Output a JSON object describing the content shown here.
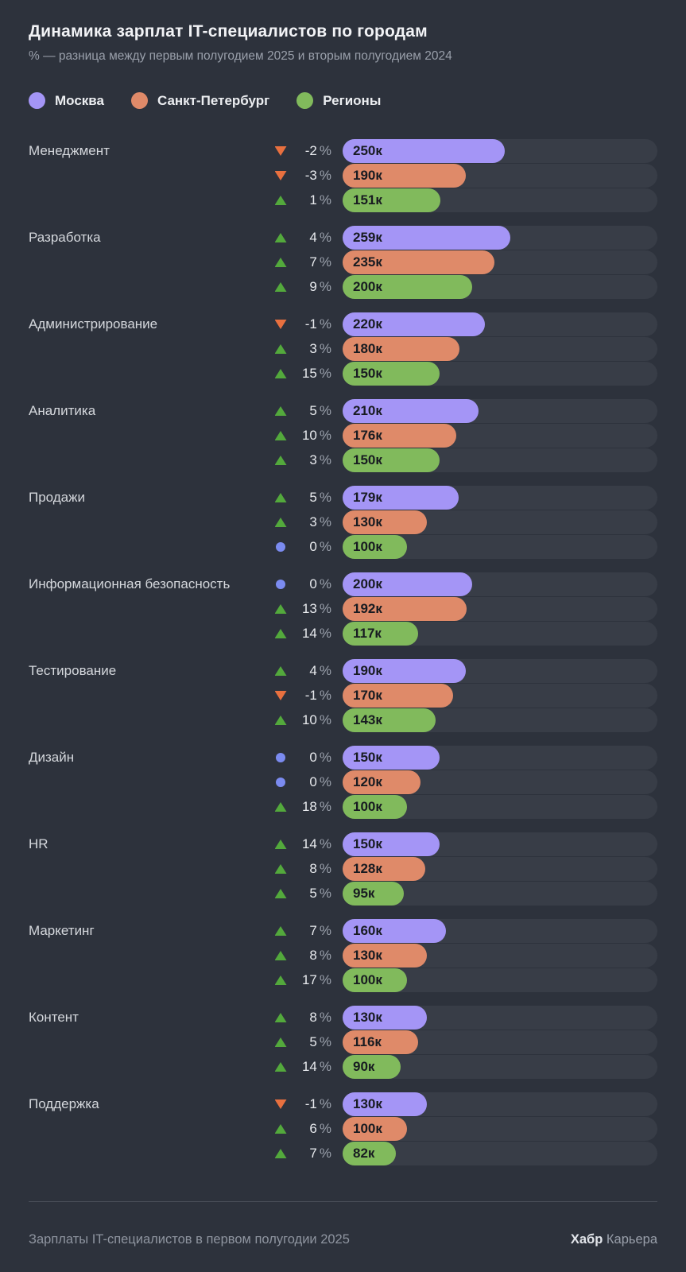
{
  "header": {
    "title": "Динамика зарплат IT-специалистов по городам",
    "subtitle": "% — разница между первым полугодием 2025 и вторым полугодием 2024"
  },
  "legend": {
    "items": [
      {
        "key": "moscow",
        "label": "Москва",
        "color": "#a495f6"
      },
      {
        "key": "spb",
        "label": "Санкт-Петербург",
        "color": "#df8a69"
      },
      {
        "key": "regions",
        "label": "Регионы",
        "color": "#81ba5c"
      }
    ]
  },
  "chart_data": {
    "type": "bar",
    "orientation": "horizontal",
    "title": "Динамика зарплат IT-специалистов по городам",
    "xlim": [
      0,
      486
    ],
    "grid": false,
    "legend_position": "top",
    "percent_sign": "%",
    "series_names": [
      "Москва",
      "Санкт-Петербург",
      "Регионы"
    ],
    "marker_colors": {
      "up": "#53a93c",
      "down": "#e8703f",
      "zero": "#7b8bf0"
    },
    "groups": [
      {
        "label": "Менеджмент",
        "rows": [
          {
            "city": "Москва",
            "city_key": "moscow",
            "direction": "down",
            "change_pct": -2,
            "change_label": "-2",
            "salary_k": 250,
            "salary_label": "250к"
          },
          {
            "city": "Санкт-Петербург",
            "city_key": "spb",
            "direction": "down",
            "change_pct": -3,
            "change_label": "-3",
            "salary_k": 190,
            "salary_label": "190к"
          },
          {
            "city": "Регионы",
            "city_key": "regions",
            "direction": "up",
            "change_pct": 1,
            "change_label": "1",
            "salary_k": 151,
            "salary_label": "151к"
          }
        ]
      },
      {
        "label": "Разработка",
        "rows": [
          {
            "city": "Москва",
            "city_key": "moscow",
            "direction": "up",
            "change_pct": 4,
            "change_label": "4",
            "salary_k": 259,
            "salary_label": "259к"
          },
          {
            "city": "Санкт-Петербург",
            "city_key": "spb",
            "direction": "up",
            "change_pct": 7,
            "change_label": "7",
            "salary_k": 235,
            "salary_label": "235к"
          },
          {
            "city": "Регионы",
            "city_key": "regions",
            "direction": "up",
            "change_pct": 9,
            "change_label": "9",
            "salary_k": 200,
            "salary_label": "200к"
          }
        ]
      },
      {
        "label": "Администрирование",
        "rows": [
          {
            "city": "Москва",
            "city_key": "moscow",
            "direction": "down",
            "change_pct": -1,
            "change_label": "-1",
            "salary_k": 220,
            "salary_label": "220к"
          },
          {
            "city": "Санкт-Петербург",
            "city_key": "spb",
            "direction": "up",
            "change_pct": 3,
            "change_label": "3",
            "salary_k": 180,
            "salary_label": "180к"
          },
          {
            "city": "Регионы",
            "city_key": "regions",
            "direction": "up",
            "change_pct": 15,
            "change_label": "15",
            "salary_k": 150,
            "salary_label": "150к"
          }
        ]
      },
      {
        "label": "Аналитика",
        "rows": [
          {
            "city": "Москва",
            "city_key": "moscow",
            "direction": "up",
            "change_pct": 5,
            "change_label": "5",
            "salary_k": 210,
            "salary_label": "210к"
          },
          {
            "city": "Санкт-Петербург",
            "city_key": "spb",
            "direction": "up",
            "change_pct": 10,
            "change_label": "10",
            "salary_k": 176,
            "salary_label": "176к"
          },
          {
            "city": "Регионы",
            "city_key": "regions",
            "direction": "up",
            "change_pct": 3,
            "change_label": "3",
            "salary_k": 150,
            "salary_label": "150к"
          }
        ]
      },
      {
        "label": "Продажи",
        "rows": [
          {
            "city": "Москва",
            "city_key": "moscow",
            "direction": "up",
            "change_pct": 5,
            "change_label": "5",
            "salary_k": 179,
            "salary_label": "179к"
          },
          {
            "city": "Санкт-Петербург",
            "city_key": "spb",
            "direction": "up",
            "change_pct": 3,
            "change_label": "3",
            "salary_k": 130,
            "salary_label": "130к"
          },
          {
            "city": "Регионы",
            "city_key": "regions",
            "direction": "zero",
            "change_pct": 0,
            "change_label": "0",
            "salary_k": 100,
            "salary_label": "100к"
          }
        ]
      },
      {
        "label": "Информационная безопасность",
        "rows": [
          {
            "city": "Москва",
            "city_key": "moscow",
            "direction": "zero",
            "change_pct": 0,
            "change_label": "0",
            "salary_k": 200,
            "salary_label": "200к"
          },
          {
            "city": "Санкт-Петербург",
            "city_key": "spb",
            "direction": "up",
            "change_pct": 13,
            "change_label": "13",
            "salary_k": 192,
            "salary_label": "192к"
          },
          {
            "city": "Регионы",
            "city_key": "regions",
            "direction": "up",
            "change_pct": 14,
            "change_label": "14",
            "salary_k": 117,
            "salary_label": "117к"
          }
        ]
      },
      {
        "label": "Тестирование",
        "rows": [
          {
            "city": "Москва",
            "city_key": "moscow",
            "direction": "up",
            "change_pct": 4,
            "change_label": "4",
            "salary_k": 190,
            "salary_label": "190к"
          },
          {
            "city": "Санкт-Петербург",
            "city_key": "spb",
            "direction": "down",
            "change_pct": -1,
            "change_label": "-1",
            "salary_k": 170,
            "salary_label": "170к"
          },
          {
            "city": "Регионы",
            "city_key": "regions",
            "direction": "up",
            "change_pct": 10,
            "change_label": "10",
            "salary_k": 143,
            "salary_label": "143к"
          }
        ]
      },
      {
        "label": "Дизайн",
        "rows": [
          {
            "city": "Москва",
            "city_key": "moscow",
            "direction": "zero",
            "change_pct": 0,
            "change_label": "0",
            "salary_k": 150,
            "salary_label": "150к"
          },
          {
            "city": "Санкт-Петербург",
            "city_key": "spb",
            "direction": "zero",
            "change_pct": 0,
            "change_label": "0",
            "salary_k": 120,
            "salary_label": "120к"
          },
          {
            "city": "Регионы",
            "city_key": "regions",
            "direction": "up",
            "change_pct": 18,
            "change_label": "18",
            "salary_k": 100,
            "salary_label": "100к"
          }
        ]
      },
      {
        "label": "HR",
        "rows": [
          {
            "city": "Москва",
            "city_key": "moscow",
            "direction": "up",
            "change_pct": 14,
            "change_label": "14",
            "salary_k": 150,
            "salary_label": "150к"
          },
          {
            "city": "Санкт-Петербург",
            "city_key": "spb",
            "direction": "up",
            "change_pct": 8,
            "change_label": "8",
            "salary_k": 128,
            "salary_label": "128к"
          },
          {
            "city": "Регионы",
            "city_key": "regions",
            "direction": "up",
            "change_pct": 5,
            "change_label": "5",
            "salary_k": 95,
            "salary_label": "95к"
          }
        ]
      },
      {
        "label": "Маркетинг",
        "rows": [
          {
            "city": "Москва",
            "city_key": "moscow",
            "direction": "up",
            "change_pct": 7,
            "change_label": "7",
            "salary_k": 160,
            "salary_label": "160к"
          },
          {
            "city": "Санкт-Петербург",
            "city_key": "spb",
            "direction": "up",
            "change_pct": 8,
            "change_label": "8",
            "salary_k": 130,
            "salary_label": "130к"
          },
          {
            "city": "Регионы",
            "city_key": "regions",
            "direction": "up",
            "change_pct": 17,
            "change_label": "17",
            "salary_k": 100,
            "salary_label": "100к"
          }
        ]
      },
      {
        "label": "Контент",
        "rows": [
          {
            "city": "Москва",
            "city_key": "moscow",
            "direction": "up",
            "change_pct": 8,
            "change_label": "8",
            "salary_k": 130,
            "salary_label": "130к"
          },
          {
            "city": "Санкт-Петербург",
            "city_key": "spb",
            "direction": "up",
            "change_pct": 5,
            "change_label": "5",
            "salary_k": 116,
            "salary_label": "116к"
          },
          {
            "city": "Регионы",
            "city_key": "regions",
            "direction": "up",
            "change_pct": 14,
            "change_label": "14",
            "salary_k": 90,
            "salary_label": "90к"
          }
        ]
      },
      {
        "label": "Поддержка",
        "rows": [
          {
            "city": "Москва",
            "city_key": "moscow",
            "direction": "down",
            "change_pct": -1,
            "change_label": "-1",
            "salary_k": 130,
            "salary_label": "130к"
          },
          {
            "city": "Санкт-Петербург",
            "city_key": "spb",
            "direction": "up",
            "change_pct": 6,
            "change_label": "6",
            "salary_k": 100,
            "salary_label": "100к"
          },
          {
            "city": "Регионы",
            "city_key": "regions",
            "direction": "up",
            "change_pct": 7,
            "change_label": "7",
            "salary_k": 82,
            "salary_label": "82к"
          }
        ]
      }
    ]
  },
  "footer": {
    "source": "Зарплаты IT-специалистов в первом полугодии 2025",
    "brand_bold": "Хабр",
    "brand_regular": "Карьера"
  },
  "colors": {
    "background": "#2d323c",
    "bar_track": "#383d47",
    "moscow": "#a495f6",
    "spb": "#df8a69",
    "regions": "#81ba5c",
    "up_marker": "#53a93c",
    "down_marker": "#e8703f",
    "zero_marker": "#7b8bf0",
    "divider": "#4a4f59"
  }
}
